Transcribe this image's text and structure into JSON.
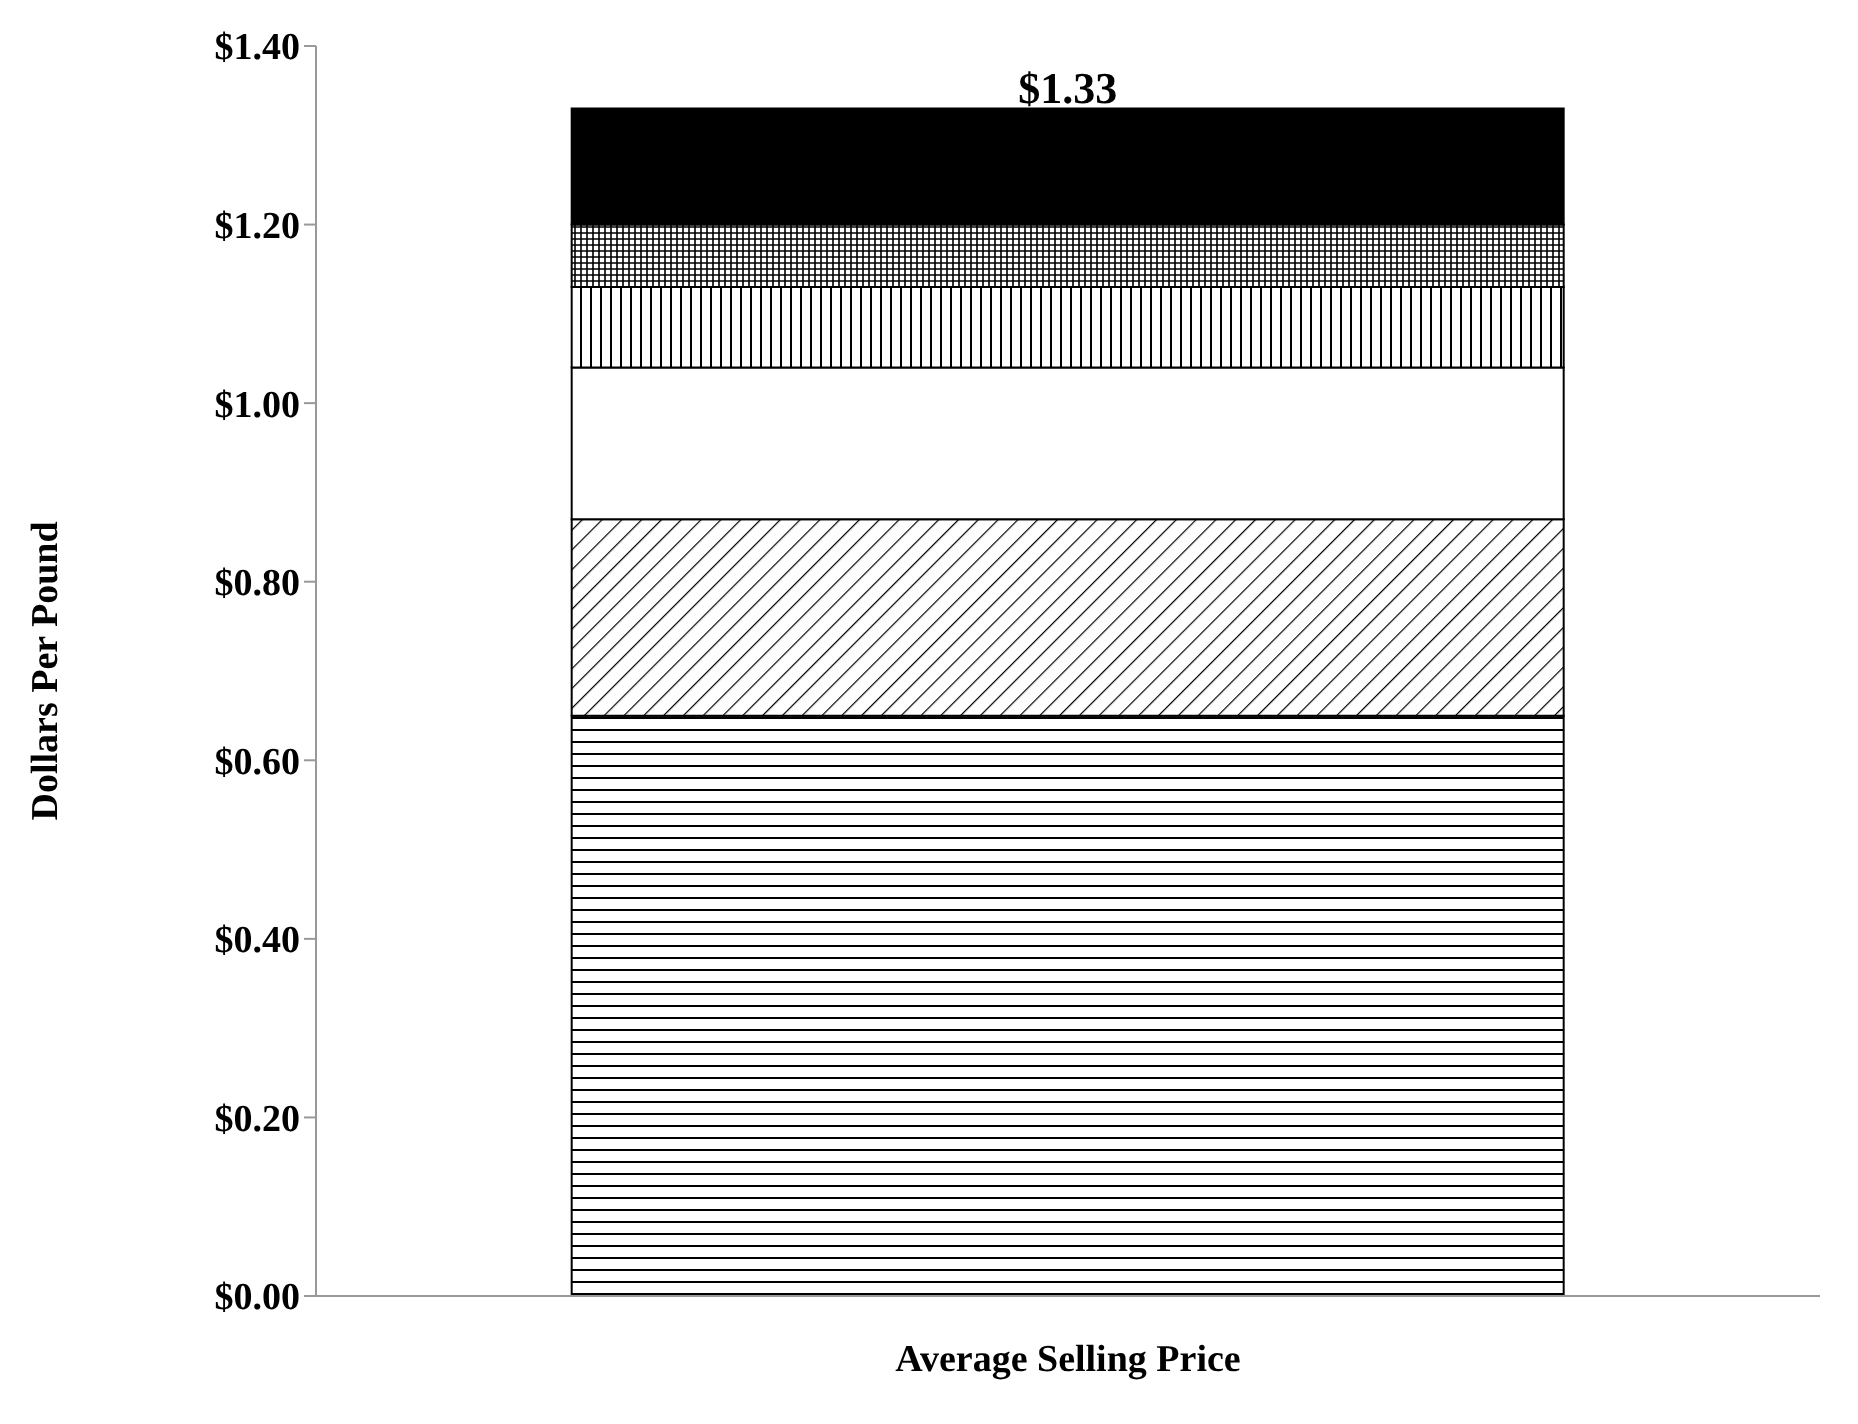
{
  "chart_data": {
    "type": "bar",
    "stacked": true,
    "categories": [
      "Average Selling Price"
    ],
    "ylabel": "Dollars Per Pound",
    "series": [
      {
        "color": "#000000",
        "values": [
          0.65
        ]
      },
      {
        "color": "#000000",
        "values": [
          0.22
        ]
      },
      {
        "color": "#ffffff",
        "values": [
          0.17
        ]
      },
      {
        "color": "#000000",
        "values": [
          0.09
        ]
      },
      {
        "color": "#000000",
        "values": [
          0.07
        ]
      },
      {
        "color": "#000000",
        "values": [
          0.13
        ]
      }
    ],
    "totals": [
      "$1.33"
    ],
    "ylim": [
      0,
      1.4
    ],
    "yticks": [
      {
        "value": 0,
        "label": "$0.00"
      },
      {
        "value": 0.2,
        "label": "$0.20"
      },
      {
        "value": 0.4,
        "label": "$0.40"
      },
      {
        "value": 0.6,
        "label": "$0.60"
      },
      {
        "value": 0.8,
        "label": "$0.80"
      },
      {
        "value": 1,
        "label": "$1.00"
      },
      {
        "value": 1.2,
        "label": "$1.20"
      },
      {
        "value": 1.4,
        "label": "$1.40"
      }
    ],
    "grid": false,
    "legend": false
  }
}
